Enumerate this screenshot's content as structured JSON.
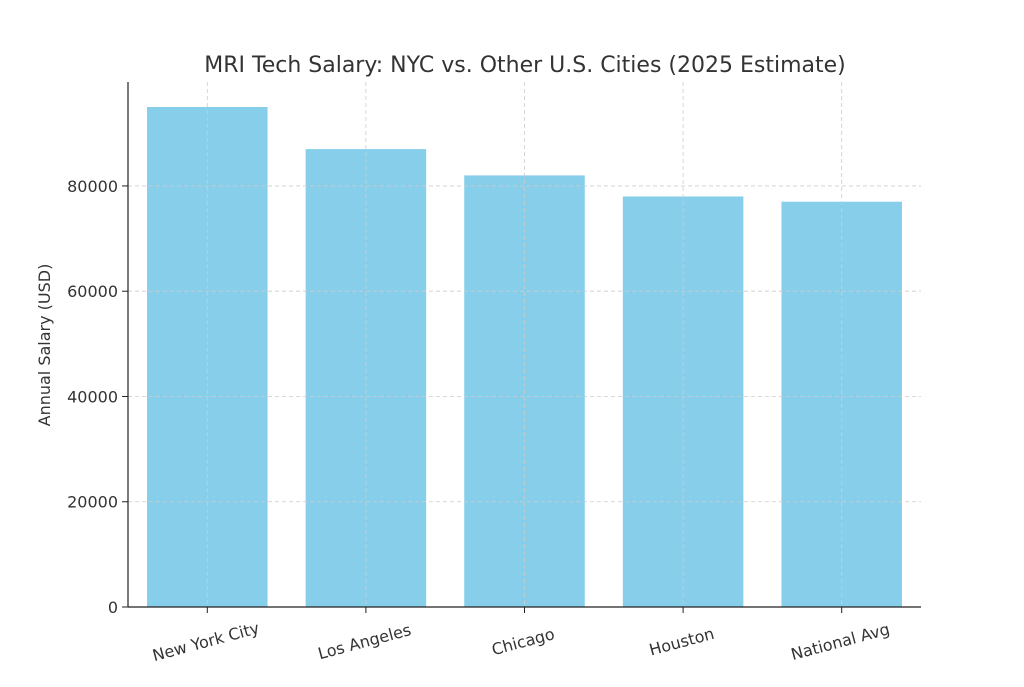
{
  "chart_data": {
    "type": "bar",
    "title": "MRI Tech Salary: NYC vs. Other U.S. Cities (2025 Estimate)",
    "xlabel": "",
    "ylabel": "Annual Salary (USD)",
    "categories": [
      "New York City",
      "Los Angeles",
      "Chicago",
      "Houston",
      "National Avg"
    ],
    "values": [
      95000,
      87000,
      82000,
      78000,
      77000
    ],
    "ylim": [
      0,
      99750
    ],
    "yticks": [
      0,
      20000,
      40000,
      60000,
      80000
    ],
    "ytick_labels": [
      "0",
      "20000",
      "40000",
      "60000",
      "80000"
    ],
    "bar_color": "#87CEEB",
    "grid": true,
    "legend": "none"
  }
}
